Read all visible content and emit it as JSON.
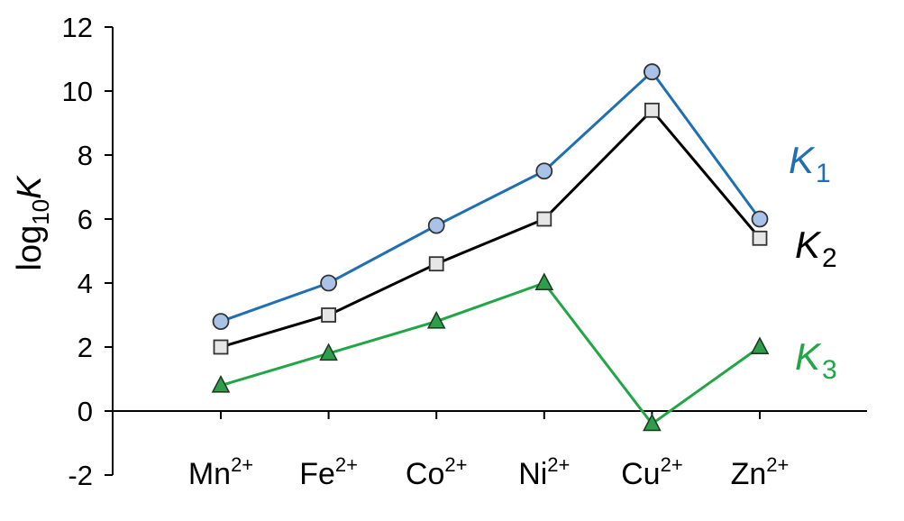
{
  "chart_data": {
    "type": "line",
    "categories": [
      "Mn",
      "Fe",
      "Co",
      "Ni",
      "Cu",
      "Zn"
    ],
    "category_superscript": "2+",
    "ylabel": {
      "main": "log",
      "sub": "10",
      "var": "K"
    },
    "ylim": [
      -2,
      12
    ],
    "yticks": [
      12,
      10,
      8,
      6,
      4,
      2,
      0,
      -2
    ],
    "grid": false,
    "series": [
      {
        "name": "K",
        "sub": "1",
        "color": "#1F6FB2",
        "marker": "circle",
        "marker_fill": "#A9C3E8",
        "values": [
          2.8,
          4.0,
          5.8,
          7.5,
          10.6,
          6.0
        ]
      },
      {
        "name": "K",
        "sub": "2",
        "color": "#000000",
        "marker": "square",
        "marker_fill": "#E6E6E6",
        "values": [
          2.0,
          3.0,
          4.6,
          6.0,
          9.4,
          5.4
        ]
      },
      {
        "name": "K",
        "sub": "3",
        "color": "#22A645",
        "marker": "triangle",
        "marker_fill": "#2E9E4A",
        "values": [
          0.8,
          1.8,
          2.8,
          4.0,
          -0.4,
          2.0
        ]
      }
    ]
  }
}
